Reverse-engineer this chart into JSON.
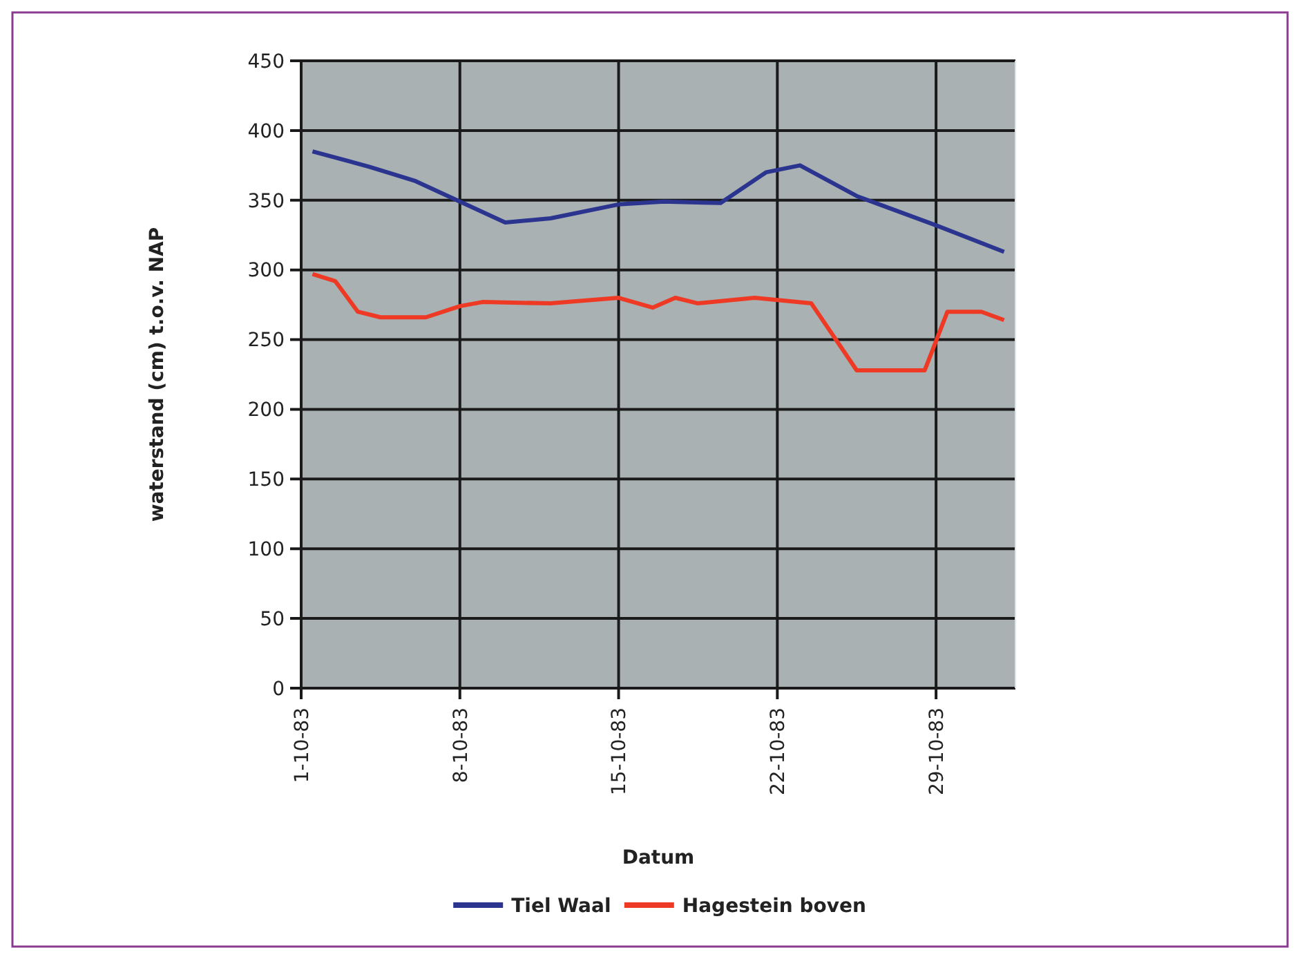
{
  "chart_data": {
    "type": "line",
    "xlabel": "Datum",
    "ylabel": "waterstand (cm) t.o.v. NAP",
    "xlim": [
      "1983-10-01",
      "1983-11-01T12:00"
    ],
    "xticks": [
      {
        "value": "1983-10-01",
        "label": "1-10-83"
      },
      {
        "value": "1983-10-08",
        "label": "8-10-83"
      },
      {
        "value": "1983-10-15",
        "label": "15-10-83"
      },
      {
        "value": "1983-10-22",
        "label": "22-10-83"
      },
      {
        "value": "1983-10-29",
        "label": "29-10-83"
      }
    ],
    "ylim": [
      0,
      450
    ],
    "yticks": [
      0,
      50,
      100,
      150,
      200,
      250,
      300,
      350,
      400,
      450
    ],
    "grid": true,
    "legend": "bottom",
    "line_style": "solid",
    "marker": "none",
    "series": [
      {
        "name": "Tiel Waal",
        "color": "#2b3590",
        "x": [
          "1983-10-01T12:00",
          "1983-10-04",
          "1983-10-06",
          "1983-10-08",
          "1983-10-10",
          "1983-10-12",
          "1983-10-15",
          "1983-10-17",
          "1983-10-19T12:00",
          "1983-10-21T12:00",
          "1983-10-23",
          "1983-10-25T12:00",
          "1983-10-29",
          "1983-11-01"
        ],
        "values": [
          385,
          374,
          364,
          349,
          334,
          337,
          347,
          349,
          348,
          370,
          375,
          353,
          332,
          313
        ]
      },
      {
        "name": "Hagestein boven",
        "color": "#ee3a24",
        "x": [
          "1983-10-01T12:00",
          "1983-10-02T12:00",
          "1983-10-03T12:00",
          "1983-10-04T12:00",
          "1983-10-06T12:00",
          "1983-10-08",
          "1983-10-09",
          "1983-10-12",
          "1983-10-15",
          "1983-10-16T12:00",
          "1983-10-17T12:00",
          "1983-10-18T12:00",
          "1983-10-21",
          "1983-10-23T12:00",
          "1983-10-25T12:00",
          "1983-10-28T12:00",
          "1983-10-29T12:00",
          "1983-10-31",
          "1983-11-01"
        ],
        "values": [
          297,
          292,
          270,
          266,
          266,
          274,
          277,
          276,
          280,
          273,
          280,
          276,
          280,
          276,
          228,
          228,
          270,
          270,
          264
        ]
      }
    ]
  }
}
